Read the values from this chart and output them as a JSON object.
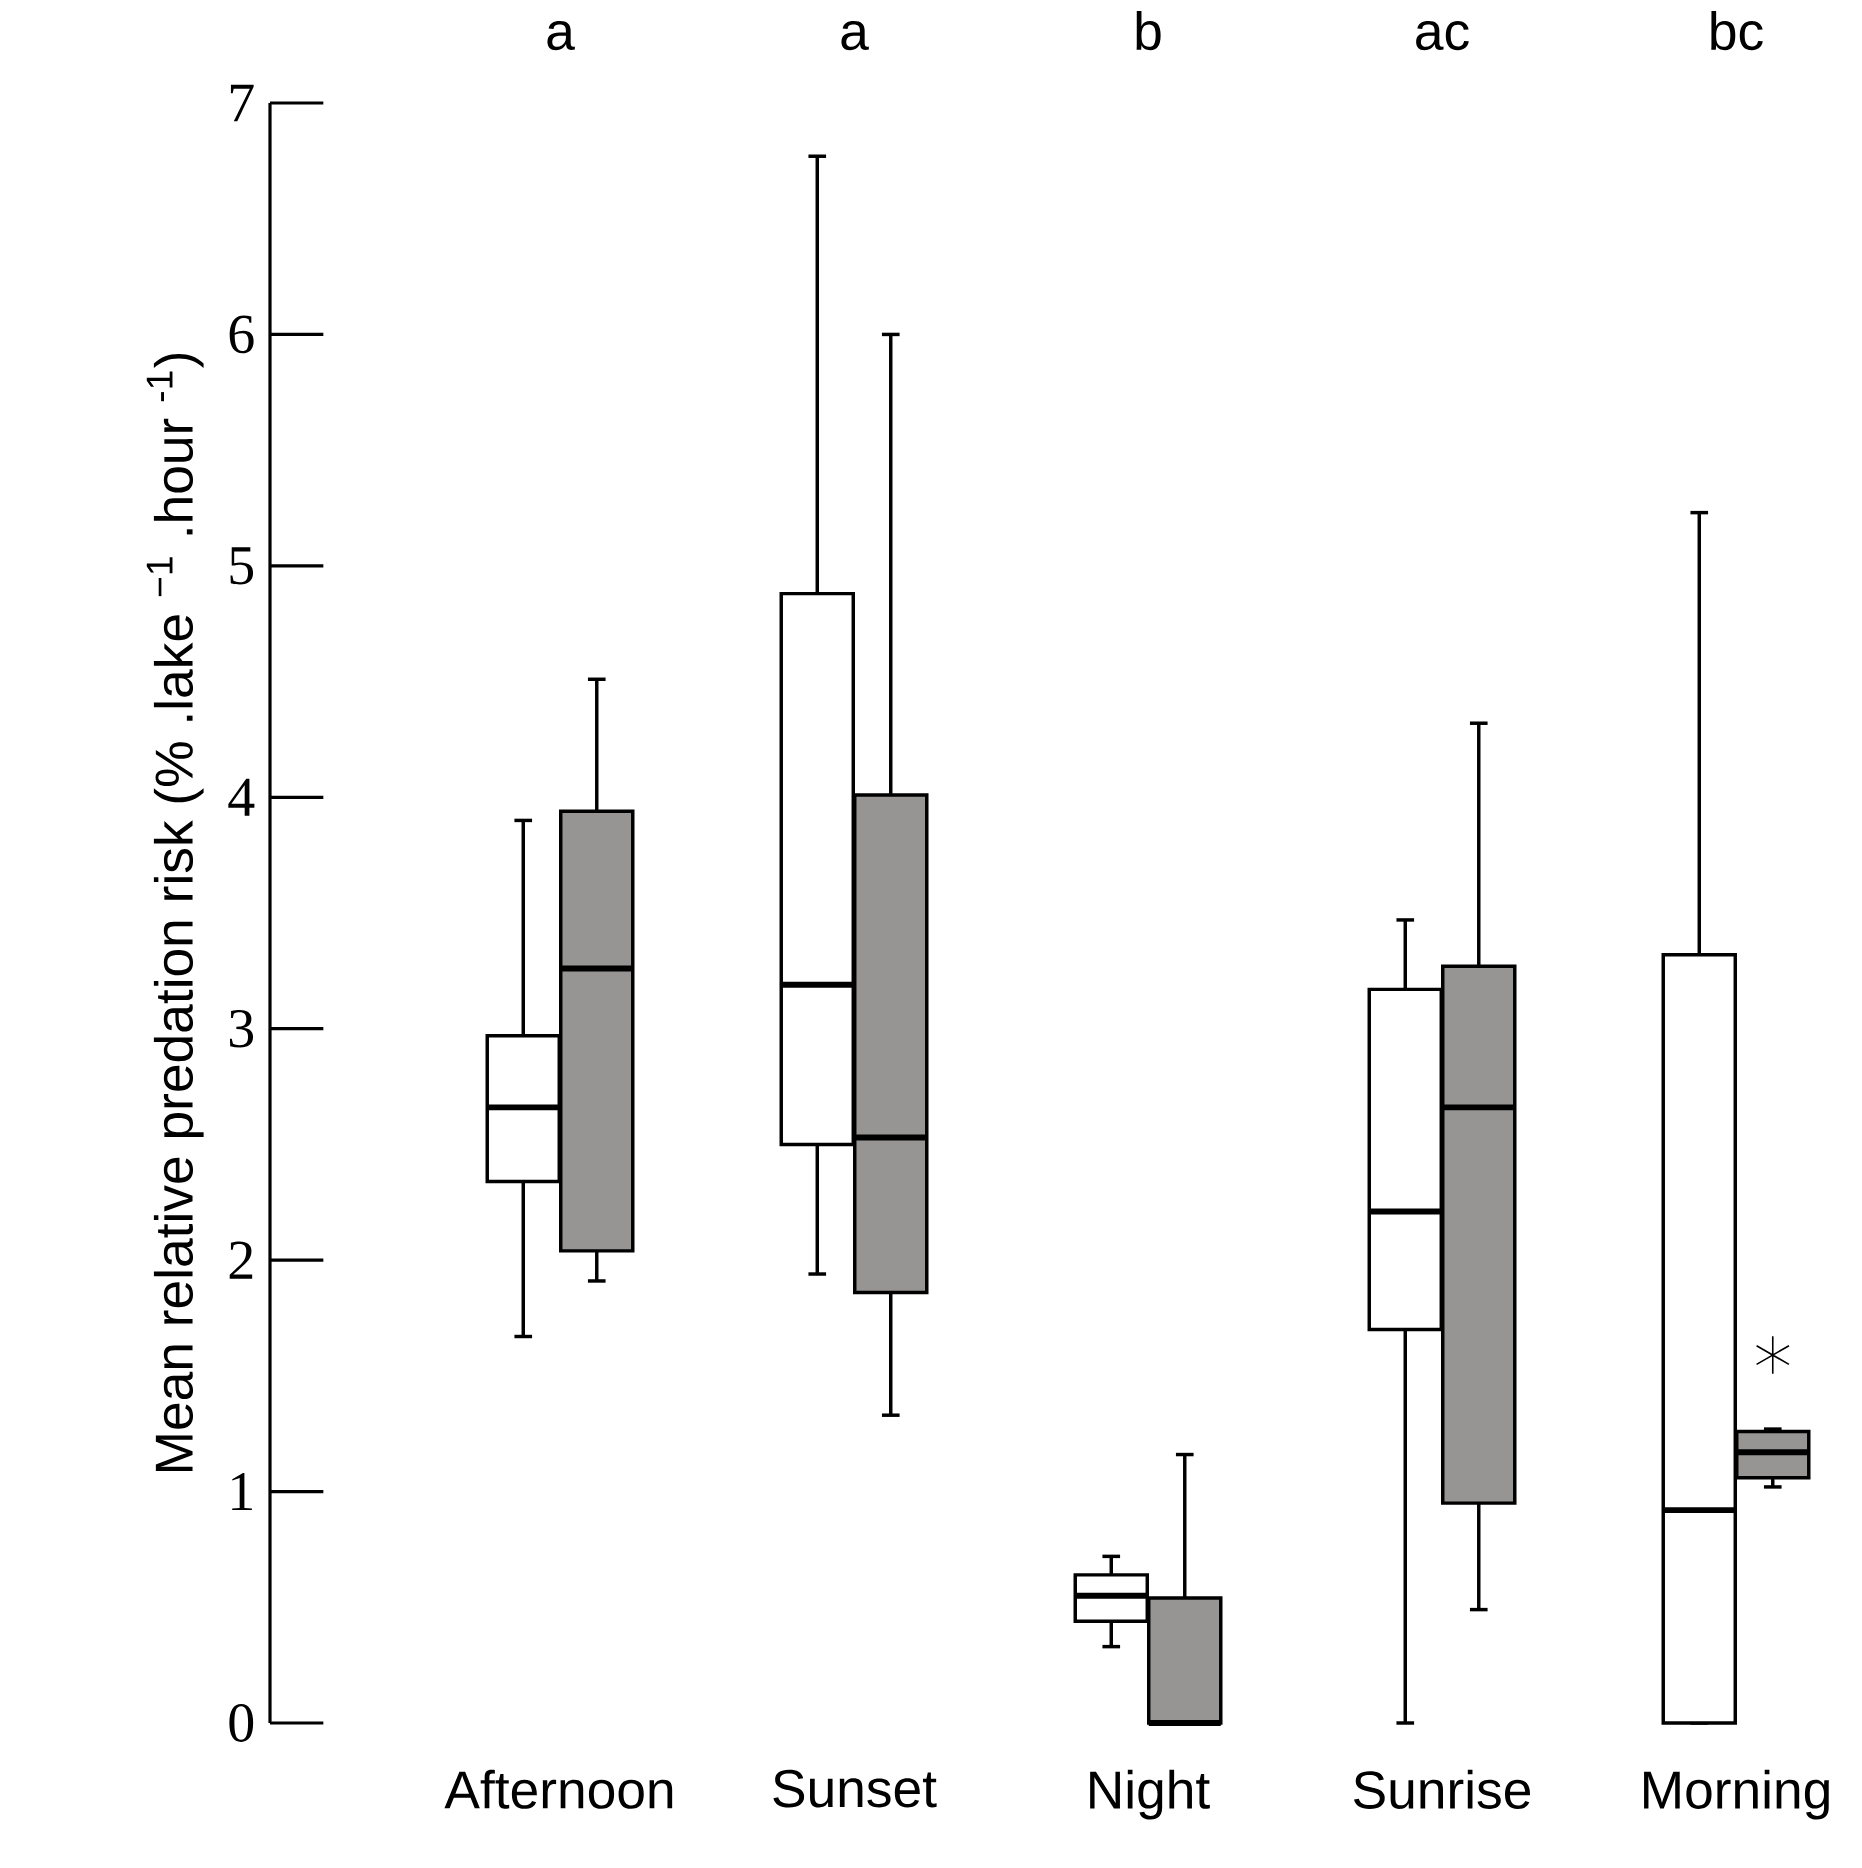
{
  "chart_data": {
    "type": "box",
    "ylabel": "Mean relative predation risk (% .lake $^{−1}$ .hour $^{-1}$)",
    "categories": [
      "Afternoon",
      "Sunset",
      "Night",
      "Sunrise",
      "Morning"
    ],
    "annotations": [
      "a",
      "a",
      "b",
      "ac",
      "bc"
    ],
    "ylim": [
      0,
      7
    ],
    "yticks": [
      0,
      1,
      2,
      3,
      4,
      5,
      6,
      7
    ],
    "series": [
      {
        "color": "#ffffff",
        "boxes": [
          {
            "low": 1.67,
            "q1": 2.34,
            "median": 2.66,
            "q3": 2.97,
            "high": 3.9
          },
          {
            "low": 1.94,
            "q1": 2.5,
            "median": 3.19,
            "q3": 4.88,
            "high": 6.77
          },
          {
            "low": 0.33,
            "q1": 0.44,
            "median": 0.55,
            "q3": 0.64,
            "high": 0.72
          },
          {
            "low": 0,
            "q1": 1.7,
            "median": 2.21,
            "q3": 3.17,
            "high": 3.47
          },
          {
            "low": 0,
            "q1": 0,
            "median": 0.92,
            "q3": 3.32,
            "high": 5.23
          }
        ]
      },
      {
        "color": "#969593",
        "boxes": [
          {
            "low": 1.91,
            "q1": 2.04,
            "median": 3.26,
            "q3": 3.94,
            "high": 4.51
          },
          {
            "low": 1.33,
            "q1": 1.86,
            "median": 2.53,
            "q3": 4.01,
            "high": 6.0
          },
          {
            "low": 0,
            "q1": 0,
            "median": 0,
            "q3": 0.54,
            "high": 1.16
          },
          {
            "low": 0.49,
            "q1": 0.95,
            "median": 2.66,
            "q3": 3.27,
            "high": 4.32
          },
          {
            "low": 1.02,
            "q1": 1.06,
            "median": 1.17,
            "q3": 1.26,
            "high": 1.27,
            "outliers": [
              1.59
            ]
          }
        ]
      }
    ]
  }
}
